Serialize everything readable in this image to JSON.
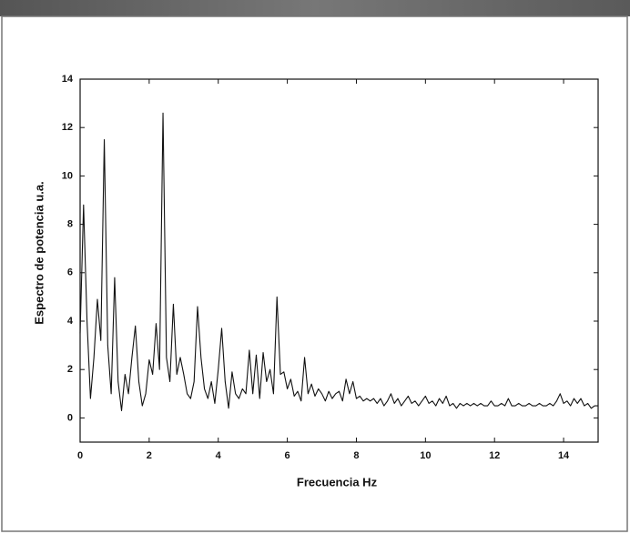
{
  "chart_data": {
    "type": "line",
    "x_label": "Frecuencia Hz",
    "y_label": "Espectro de potencia u.a.",
    "x": [
      0,
      0.1,
      0.2,
      0.3,
      0.4,
      0.5,
      0.6,
      0.7,
      0.8,
      0.9,
      1,
      1.1,
      1.2,
      1.3,
      1.4,
      1.5,
      1.6,
      1.7,
      1.8,
      1.9,
      2,
      2.1,
      2.2,
      2.3,
      2.4,
      2.5,
      2.6,
      2.7,
      2.8,
      2.9,
      3,
      3.1,
      3.2,
      3.3,
      3.4,
      3.5,
      3.6,
      3.7,
      3.8,
      3.9,
      4,
      4.1,
      4.2,
      4.3,
      4.4,
      4.5,
      4.6,
      4.7,
      4.8,
      4.9,
      5,
      5.1,
      5.2,
      5.3,
      5.4,
      5.5,
      5.6,
      5.7,
      5.8,
      5.9,
      6,
      6.1,
      6.2,
      6.3,
      6.4,
      6.5,
      6.6,
      6.7,
      6.8,
      6.9,
      7,
      7.1,
      7.2,
      7.3,
      7.4,
      7.5,
      7.6,
      7.7,
      7.8,
      7.9,
      8,
      8.1,
      8.2,
      8.3,
      8.4,
      8.5,
      8.6,
      8.7,
      8.8,
      8.9,
      9,
      9.1,
      9.2,
      9.3,
      9.4,
      9.5,
      9.6,
      9.7,
      9.8,
      9.9,
      10,
      10.1,
      10.2,
      10.3,
      10.4,
      10.5,
      10.6,
      10.7,
      10.8,
      10.9,
      11,
      11.1,
      11.2,
      11.3,
      11.4,
      11.5,
      11.6,
      11.7,
      11.8,
      11.9,
      12,
      12.1,
      12.2,
      12.3,
      12.4,
      12.5,
      12.6,
      12.7,
      12.8,
      12.9,
      13,
      13.1,
      13.2,
      13.3,
      13.4,
      13.5,
      13.6,
      13.7,
      13.8,
      13.9,
      14,
      14.1,
      14.2,
      14.3,
      14.4,
      14.5,
      14.6,
      14.7,
      14.8,
      14.9,
      15
    ],
    "series": [
      {
        "color": "#111111",
        "values": [
          3.5,
          8.8,
          4.0,
          0.8,
          2.5,
          4.9,
          3.2,
          11.5,
          3.0,
          1.0,
          5.8,
          1.5,
          0.3,
          1.8,
          1.0,
          2.5,
          3.8,
          1.5,
          0.5,
          1.0,
          2.4,
          1.8,
          3.9,
          2.0,
          12.6,
          2.5,
          1.5,
          4.7,
          1.8,
          2.5,
          1.8,
          1.0,
          0.8,
          1.5,
          4.6,
          2.5,
          1.2,
          0.8,
          1.5,
          0.6,
          2.0,
          3.7,
          1.5,
          0.4,
          1.9,
          1.0,
          0.8,
          1.2,
          1.0,
          2.8,
          1.0,
          2.6,
          0.8,
          2.7,
          1.5,
          2.0,
          1.0,
          5.0,
          1.8,
          1.9,
          1.2,
          1.6,
          0.9,
          1.1,
          0.7,
          2.5,
          1.0,
          1.4,
          0.9,
          1.2,
          1.0,
          0.7,
          1.1,
          0.8,
          1.0,
          1.1,
          0.7,
          1.6,
          1.0,
          1.5,
          0.8,
          0.9,
          0.7,
          0.8,
          0.7,
          0.8,
          0.6,
          0.8,
          0.5,
          0.7,
          1.0,
          0.6,
          0.8,
          0.5,
          0.7,
          0.9,
          0.6,
          0.7,
          0.5,
          0.7,
          0.9,
          0.6,
          0.7,
          0.5,
          0.8,
          0.6,
          0.9,
          0.5,
          0.6,
          0.4,
          0.6,
          0.5,
          0.6,
          0.5,
          0.6,
          0.5,
          0.6,
          0.5,
          0.5,
          0.7,
          0.5,
          0.5,
          0.6,
          0.5,
          0.8,
          0.5,
          0.5,
          0.6,
          0.5,
          0.5,
          0.6,
          0.5,
          0.5,
          0.6,
          0.5,
          0.5,
          0.6,
          0.5,
          0.7,
          1.0,
          0.6,
          0.7,
          0.5,
          0.8,
          0.6,
          0.8,
          0.5,
          0.6,
          0.4,
          0.5,
          0.5
        ]
      }
    ],
    "xlim": [
      0,
      15
    ],
    "ylim": [
      -1,
      14
    ],
    "xticks": [
      0,
      2,
      4,
      6,
      8,
      10,
      12,
      14
    ],
    "yticks": [
      0,
      2,
      4,
      6,
      8,
      10,
      12,
      14
    ]
  }
}
